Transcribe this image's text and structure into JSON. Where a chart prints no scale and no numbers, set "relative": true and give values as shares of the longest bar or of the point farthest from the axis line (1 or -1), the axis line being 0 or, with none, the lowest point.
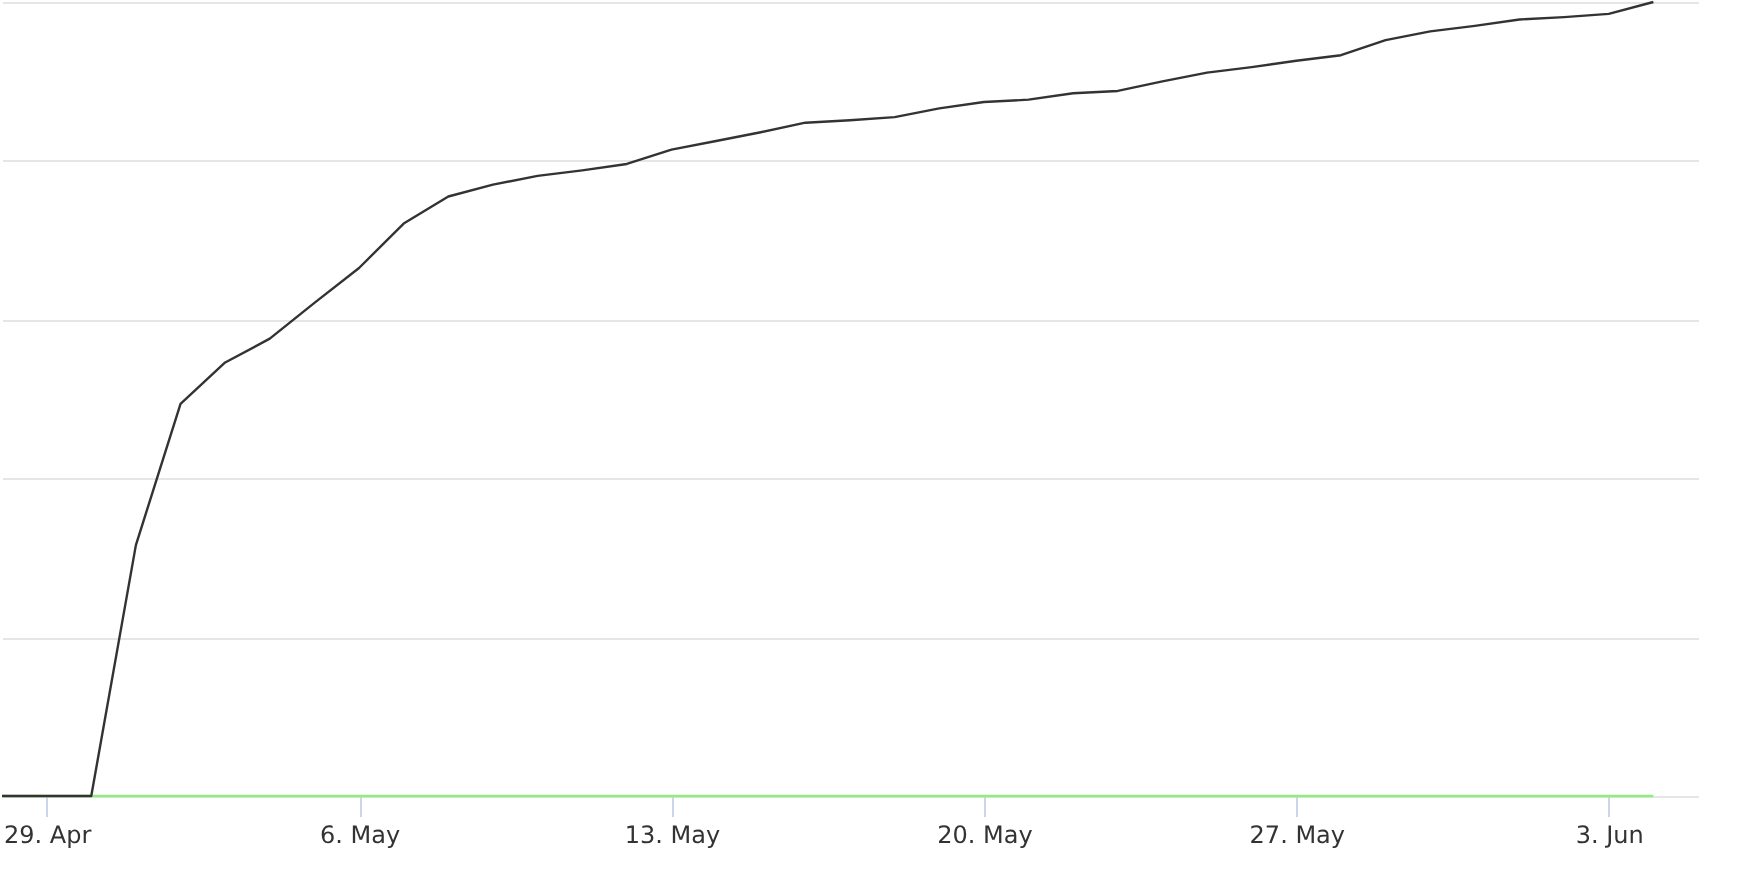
{
  "chart_data": {
    "type": "line",
    "relative": true,
    "grid": "y",
    "legend": false,
    "tick_labels": "x",
    "x": [
      "--04-28",
      "--04-29",
      "--04-30",
      "--05-01",
      "--05-02",
      "--05-03",
      "--05-04",
      "--05-05",
      "--05-06",
      "--05-07",
      "--05-08",
      "--05-09",
      "--05-10",
      "--05-11",
      "--05-12",
      "--05-13",
      "--05-14",
      "--05-15",
      "--05-16",
      "--05-17",
      "--05-18",
      "--05-19",
      "--05-20",
      "--05-21",
      "--05-22",
      "--05-23",
      "--05-24",
      "--05-25",
      "--05-26",
      "--05-27",
      "--05-28",
      "--05-29",
      "--05-30",
      "--05-31",
      "--06-01",
      "--06-02",
      "--06-03",
      "--06-04"
    ],
    "xlim": [
      "--04-28",
      "--06-05"
    ],
    "xticks": [
      {
        "value": "--04-29",
        "label": "29. Apr"
      },
      {
        "value": "--05-06",
        "label": "6. May"
      },
      {
        "value": "--05-13",
        "label": "13. May"
      },
      {
        "value": "--05-20",
        "label": "20. May"
      },
      {
        "value": "--05-27",
        "label": "27. May"
      },
      {
        "value": "--06-03",
        "label": "3. Jun"
      }
    ],
    "series": [
      {
        "color": "#90ed7d",
        "values": [
          0,
          0,
          0,
          0,
          0,
          0,
          0,
          0,
          0,
          0,
          0,
          0,
          0,
          0,
          0,
          0,
          0,
          0,
          0,
          0,
          0,
          0,
          0,
          0,
          0,
          0,
          0,
          0,
          0,
          0,
          0,
          0,
          0,
          0,
          0,
          0,
          0,
          0
        ]
      },
      {
        "color": "#333333",
        "values": [
          0,
          0,
          0,
          0.316,
          0.494,
          0.546,
          0.576,
          0.621,
          0.665,
          0.721,
          0.755,
          0.77,
          0.781,
          0.788,
          0.796,
          0.814,
          0.825,
          0.836,
          0.848,
          0.851,
          0.855,
          0.866,
          0.874,
          0.877,
          0.885,
          0.888,
          0.9,
          0.911,
          0.918,
          0.926,
          0.933,
          0.952,
          0.963,
          0.97,
          0.978,
          0.981,
          0.985,
          1
        ]
      }
    ]
  }
}
